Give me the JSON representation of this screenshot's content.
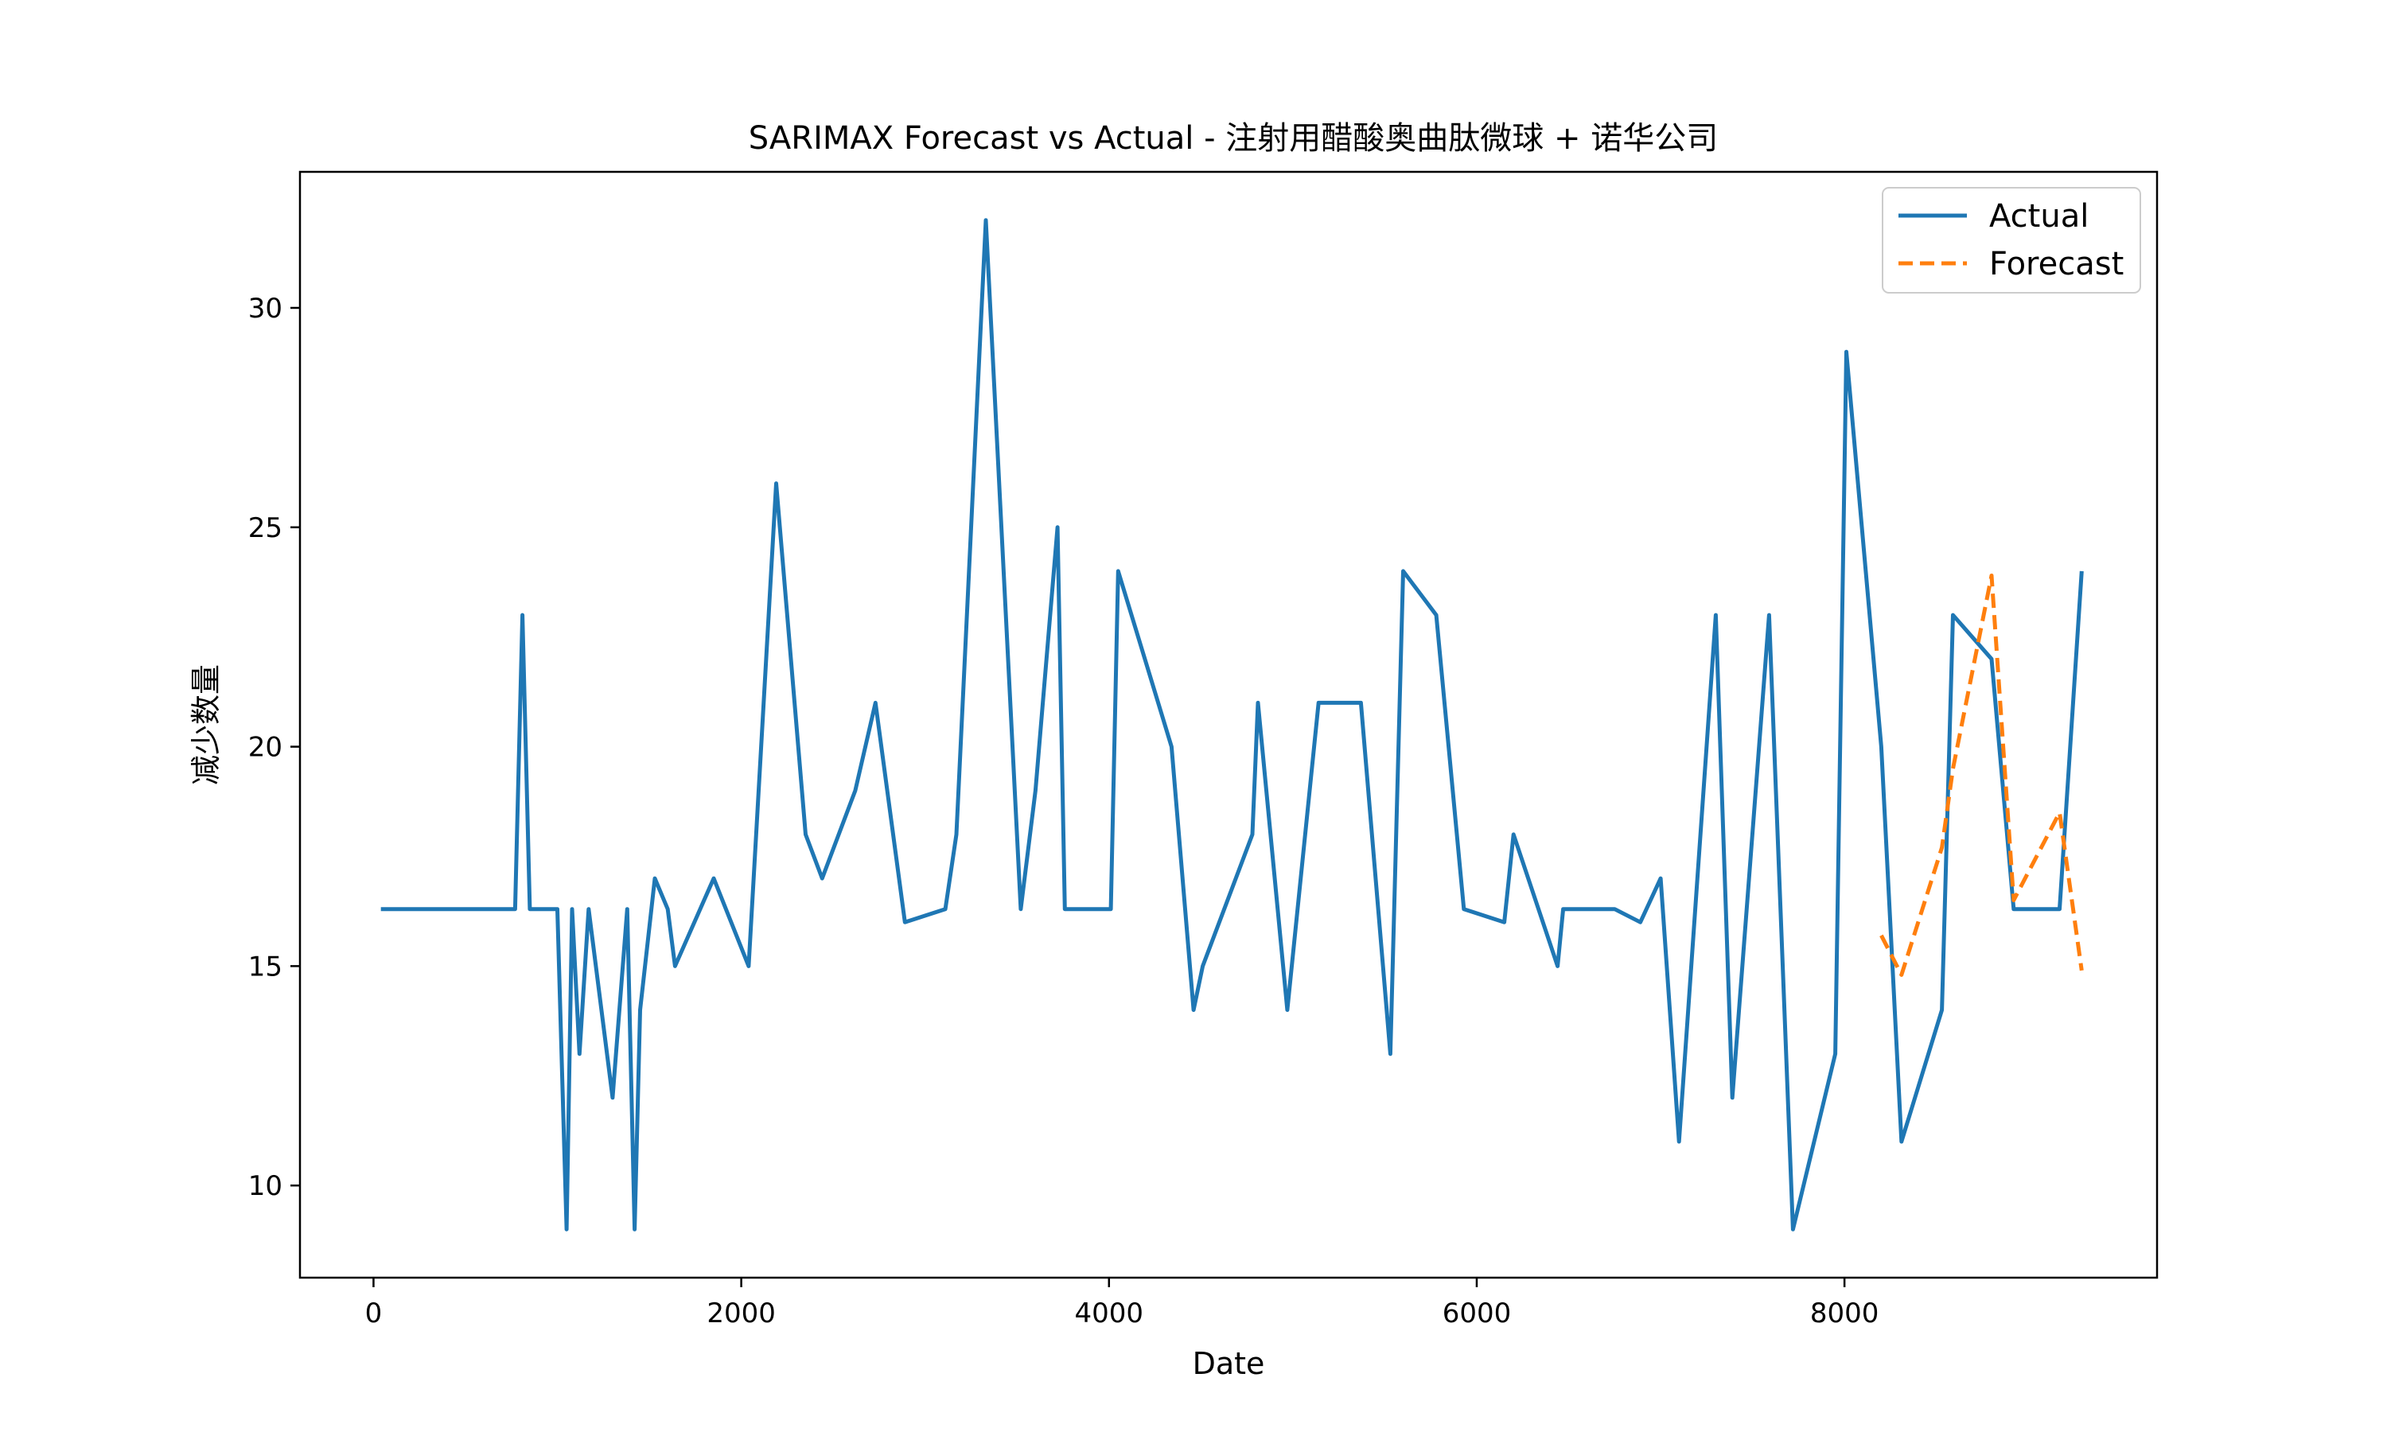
{
  "chart_data": {
    "type": "line",
    "title": "SARIMAX Forecast vs Actual - 注射用醋酸奥曲肽微球 + 诺华公司",
    "xlabel": "Date",
    "ylabel": "减少数量",
    "xlim": [
      -400,
      9700
    ],
    "ylim": [
      7.9,
      33.1
    ],
    "x_ticks": [
      0,
      2000,
      4000,
      6000,
      8000
    ],
    "x_tick_labels": [
      "0",
      "2000",
      "4000",
      "6000",
      "8000"
    ],
    "y_ticks": [
      10,
      15,
      20,
      25,
      30
    ],
    "y_tick_labels": [
      "10",
      "15",
      "20",
      "25",
      "30"
    ],
    "grid": false,
    "legend_position": "upper right",
    "series": [
      {
        "name": "Actual",
        "color": "#1f77b4",
        "style": "solid",
        "x": [
          40,
          770,
          810,
          850,
          1000,
          1050,
          1080,
          1120,
          1170,
          1300,
          1380,
          1420,
          1450,
          1530,
          1600,
          1640,
          1850,
          2040,
          2190,
          2350,
          2440,
          2620,
          2730,
          2890,
          3110,
          3170,
          3330,
          3520,
          3600,
          3720,
          3760,
          3840,
          4010,
          4050,
          4340,
          4460,
          4510,
          4780,
          4810,
          4970,
          5140,
          5200,
          5250,
          5370,
          5530,
          5600,
          5780,
          5930,
          6150,
          6200,
          6440,
          6470,
          6580,
          6750,
          6890,
          7000,
          7100,
          7300,
          7390,
          7590,
          7720,
          7950,
          8010,
          8200,
          8310,
          8530,
          8590,
          8800,
          8920,
          9050,
          9170,
          9290
        ],
        "y": [
          16.3,
          16.3,
          23,
          16.3,
          16.3,
          9,
          16.3,
          13,
          16.3,
          12,
          16.3,
          9,
          14,
          17,
          16.3,
          15,
          17,
          15,
          26,
          18,
          17,
          19,
          21,
          16,
          16.3,
          18,
          32,
          16.3,
          19,
          25,
          16.3,
          16.3,
          16.3,
          24,
          20,
          14,
          15,
          18,
          21,
          14,
          21,
          21,
          21,
          21,
          13,
          24,
          23,
          16.3,
          16,
          18,
          15,
          16.3,
          16.3,
          16.3,
          16,
          17,
          11,
          23,
          12,
          23,
          9,
          13,
          29,
          20,
          11,
          14,
          23,
          22,
          16.3,
          16.3,
          16.3,
          24
        ]
      },
      {
        "name": "Forecast",
        "color": "#ff7f0e",
        "style": "dashed",
        "x": [
          8200,
          8310,
          8530,
          8590,
          8800,
          8920,
          9170,
          9290
        ],
        "y": [
          15.7,
          14.8,
          17.7,
          19.5,
          23.9,
          16.5,
          18.5,
          14.9
        ]
      }
    ]
  }
}
